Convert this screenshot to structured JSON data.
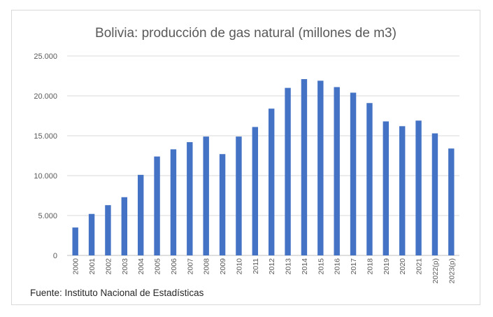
{
  "chart_data": {
    "type": "bar",
    "title": "Bolivia: producción de gas natural (millones de m3)",
    "source": "Fuente: Instituto Nacional de Estadísticas",
    "categories": [
      "2000",
      "2001",
      "2002",
      "2003",
      "2004",
      "2005",
      "2006",
      "2007",
      "2008",
      "2009",
      "2010",
      "2011",
      "2012",
      "2013",
      "2014",
      "2015",
      "2016",
      "2017",
      "2018",
      "2019",
      "2020",
      "2021",
      "2022(p)",
      "2023(p)"
    ],
    "values": [
      3500,
      5200,
      6300,
      7300,
      10100,
      12400,
      13300,
      14200,
      14900,
      12700,
      14900,
      16100,
      18400,
      21000,
      22100,
      21900,
      21100,
      20400,
      19100,
      16800,
      16200,
      16900,
      15300,
      13400
    ],
    "yticks": [
      "0",
      "5.000",
      "10.000",
      "15.000",
      "20.000",
      "25.000"
    ],
    "ylim": [
      0,
      25000
    ],
    "grid": true,
    "bar_color": "#4472c4"
  }
}
